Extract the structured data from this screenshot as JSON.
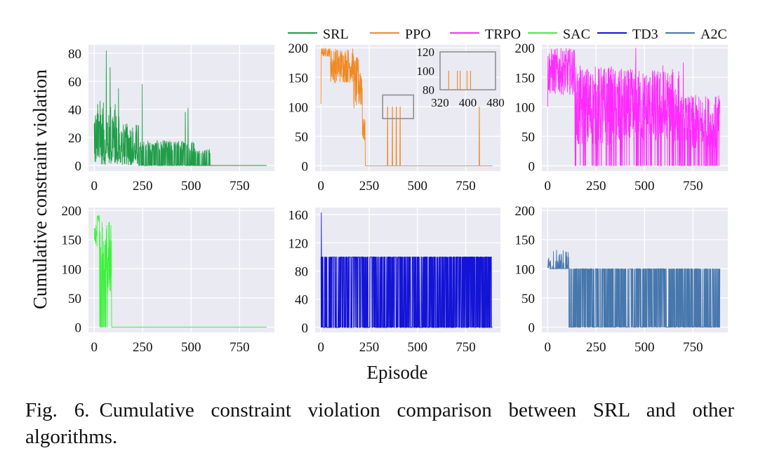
{
  "legend": [
    {
      "name": "SRL",
      "color": "#1f9e48"
    },
    {
      "name": "PPO",
      "color": "#f08a24"
    },
    {
      "name": "TRPO",
      "color": "#ff2bff"
    },
    {
      "name": "SAC",
      "color": "#3cf23c"
    },
    {
      "name": "TD3",
      "color": "#1414d6"
    },
    {
      "name": "A2C",
      "color": "#4677ad"
    }
  ],
  "y_label": "Cumulative constraint violation",
  "x_label": "Episode",
  "caption": {
    "label": "Fig. 6.",
    "text": "Cumulative constraint violation comparison between SRL and other algorithms."
  },
  "chart_data": [
    {
      "type": "line",
      "series": "SRL",
      "color": "#1f9e48",
      "xlim": [
        -30,
        930
      ],
      "ylim": [
        -4,
        86
      ],
      "xticks": [
        0,
        250,
        500,
        750
      ],
      "yticks": [
        0,
        20,
        40,
        60,
        80
      ],
      "episodes": 890,
      "pattern": "srl"
    },
    {
      "type": "line",
      "series": "PPO",
      "color": "#f08a24",
      "xlim": [
        -30,
        930
      ],
      "ylim": [
        -9,
        205
      ],
      "xticks": [
        0,
        250,
        500,
        750
      ],
      "yticks": [
        0,
        50,
        100,
        150,
        200
      ],
      "episodes": 890,
      "pattern": "ppo",
      "spikes": [
        [
          345,
          100
        ],
        [
          370,
          100
        ],
        [
          390,
          100
        ],
        [
          410,
          100
        ],
        [
          820,
          100
        ]
      ],
      "zoom_region": {
        "x": [
          320,
          480
        ],
        "y": [
          80,
          120
        ]
      },
      "inset": {
        "xlim": [
          320,
          480
        ],
        "ylim": [
          80,
          120
        ],
        "xticks": [
          320,
          400,
          480
        ],
        "yticks": [
          80,
          100,
          120
        ],
        "spikes": [
          345,
          370,
          378,
          398,
          408
        ]
      }
    },
    {
      "type": "line",
      "series": "TRPO",
      "color": "#ff2bff",
      "xlim": [
        -30,
        930
      ],
      "ylim": [
        -9,
        205
      ],
      "xticks": [
        0,
        250,
        500,
        750
      ],
      "yticks": [
        0,
        50,
        100,
        150,
        200
      ],
      "episodes": 890,
      "pattern": "trpo"
    },
    {
      "type": "line",
      "series": "SAC",
      "color": "#3cf23c",
      "xlim": [
        -30,
        930
      ],
      "ylim": [
        -9,
        205
      ],
      "xticks": [
        0,
        250,
        500,
        750
      ],
      "yticks": [
        0,
        50,
        100,
        150,
        200
      ],
      "episodes": 890,
      "pattern": "sac"
    },
    {
      "type": "line",
      "series": "TD3",
      "color": "#1414d6",
      "xlim": [
        -30,
        930
      ],
      "ylim": [
        -7,
        170
      ],
      "xticks": [
        0,
        250,
        500,
        750
      ],
      "yticks": [
        0,
        40,
        80,
        120,
        160
      ],
      "episodes": 890,
      "pattern": "td3"
    },
    {
      "type": "line",
      "series": "A2C",
      "color": "#4677ad",
      "xlim": [
        -30,
        930
      ],
      "ylim": [
        -9,
        205
      ],
      "xticks": [
        0,
        250,
        500,
        750
      ],
      "yticks": [
        0,
        50,
        100,
        150,
        200
      ],
      "episodes": 890,
      "pattern": "a2c"
    }
  ]
}
